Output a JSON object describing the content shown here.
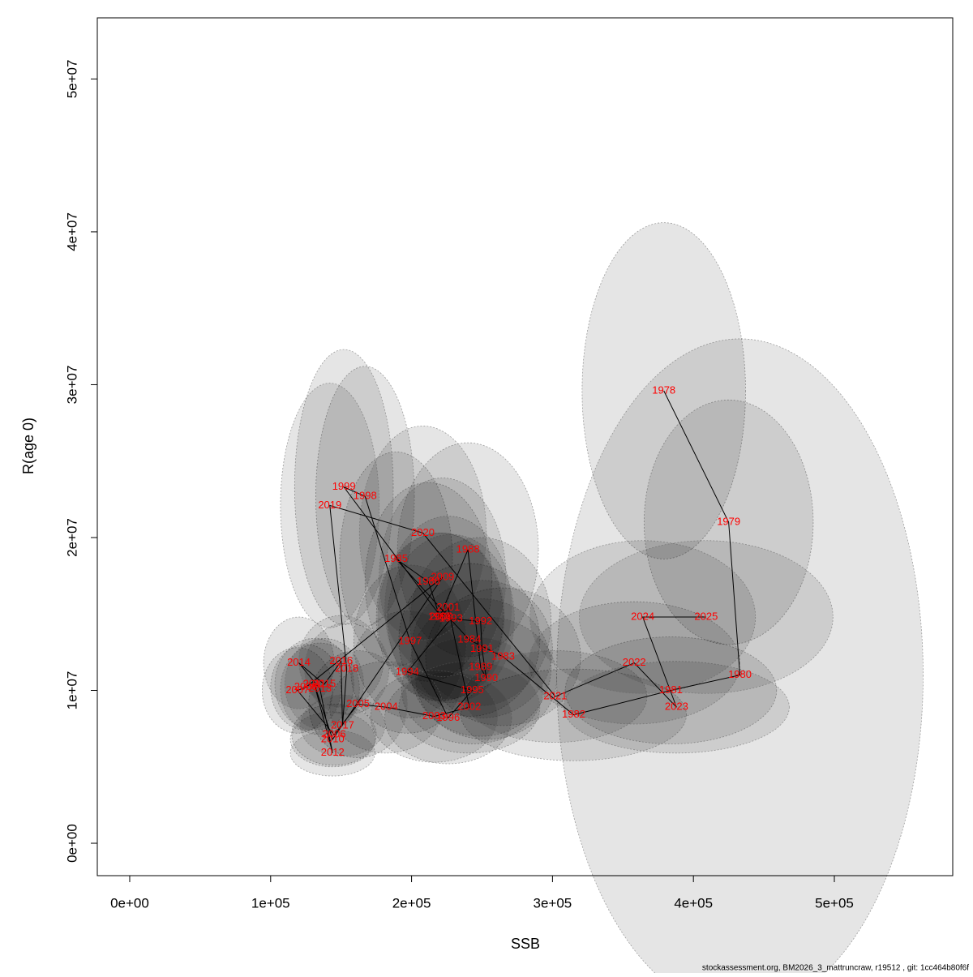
{
  "chart_data": {
    "type": "scatter",
    "x_label": "SSB",
    "y_label": "R(age 0)",
    "footer": "stockassessment.org, BM2026_3_mattruncraw, r19512 , git: 1cc464b80f6f",
    "labels": [
      "1978",
      "1979",
      "1980",
      "1981",
      "1982",
      "1983",
      "1984",
      "1985",
      "1986",
      "1987",
      "1988",
      "1989",
      "1990",
      "1991",
      "1992",
      "1993",
      "1994",
      "1995",
      "1996",
      "1997",
      "1998",
      "1999",
      "2000",
      "2001",
      "2002",
      "2003",
      "2004",
      "2005",
      "2006",
      "2007",
      "2008",
      "2009",
      "2010",
      "2011",
      "2012",
      "2013",
      "2014",
      "2015",
      "2016",
      "2017",
      "2018",
      "2019",
      "2020",
      "2021",
      "2022",
      "2023",
      "2024",
      "2025"
    ],
    "x": [
      379000,
      425000,
      433000,
      384000,
      315000,
      265000,
      241000,
      189000,
      212000,
      220000,
      240000,
      249000,
      253000,
      250000,
      249000,
      228000,
      197000,
      243000,
      226000,
      199000,
      167000,
      152000,
      221000,
      226000,
      241000,
      216000,
      182000,
      162000,
      145000,
      119000,
      125000,
      222000,
      144000,
      131000,
      144000,
      135000,
      120000,
      138000,
      150000,
      151000,
      154000,
      142000,
      208000,
      302000,
      358000,
      388000,
      364000,
      409000
    ],
    "values": [
      29600000,
      21000000,
      11000000,
      10000000,
      8400000,
      12200000,
      13300000,
      18600000,
      17100000,
      14800000,
      19200000,
      11500000,
      10800000,
      12700000,
      14500000,
      14700000,
      11200000,
      10000000,
      8200000,
      13200000,
      22700000,
      23300000,
      14800000,
      15400000,
      8900000,
      8300000,
      8900000,
      9100000,
      7100000,
      10000000,
      10200000,
      17400000,
      6800000,
      10400000,
      5900000,
      10100000,
      11800000,
      10400000,
      11900000,
      7700000,
      11400000,
      22100000,
      20300000,
      9600000,
      11800000,
      8900000,
      14800000,
      14800000
    ],
    "rx": [
      58000,
      60000,
      130000,
      75000,
      80000,
      55000,
      50000,
      40000,
      45000,
      45000,
      50000,
      50000,
      50000,
      50000,
      50000,
      45000,
      40000,
      50000,
      45000,
      40000,
      35000,
      35000,
      45000,
      45000,
      50000,
      45000,
      40000,
      35000,
      30000,
      25000,
      25000,
      45000,
      30000,
      28000,
      30000,
      28000,
      25000,
      28000,
      30000,
      30000,
      30000,
      35000,
      45000,
      65000,
      75000,
      80000,
      80000,
      90000
    ],
    "ry": [
      11000000,
      8000000,
      22000000,
      3500000,
      3000000,
      4500000,
      5000000,
      7000000,
      6500000,
      5500000,
      7000000,
      4500000,
      4000000,
      4500000,
      5500000,
      5500000,
      4000000,
      3500000,
      3000000,
      5000000,
      8500000,
      9000000,
      5500000,
      6000000,
      3000000,
      3000000,
      3000000,
      3500000,
      2000000,
      2800000,
      2800000,
      6500000,
      1800000,
      3000000,
      1500000,
      3000000,
      3000000,
      3000000,
      3000000,
      2000000,
      3000000,
      8000000,
      7000000,
      3000000,
      4000000,
      3000000,
      5000000,
      5000000
    ],
    "label_color": "#ff0000",
    "line_color": "#000000",
    "ellipse_color": "#000000",
    "xlim": [
      -23000,
      584000
    ],
    "ylim": [
      -2120000,
      54000000
    ],
    "xticks": [
      {
        "value": 0,
        "label": "0e+00"
      },
      {
        "value": 100000,
        "label": "1e+05"
      },
      {
        "value": 200000,
        "label": "2e+05"
      },
      {
        "value": 300000,
        "label": "3e+05"
      },
      {
        "value": 400000,
        "label": "4e+05"
      },
      {
        "value": 500000,
        "label": "5e+05"
      }
    ],
    "yticks": [
      {
        "value": 0,
        "label": "0e+00"
      },
      {
        "value": 10000000,
        "label": "1e+07"
      },
      {
        "value": 20000000,
        "label": "2e+07"
      },
      {
        "value": 30000000,
        "label": "3e+07"
      },
      {
        "value": 40000000,
        "label": "4e+07"
      },
      {
        "value": 50000000,
        "label": "5e+07"
      }
    ]
  }
}
